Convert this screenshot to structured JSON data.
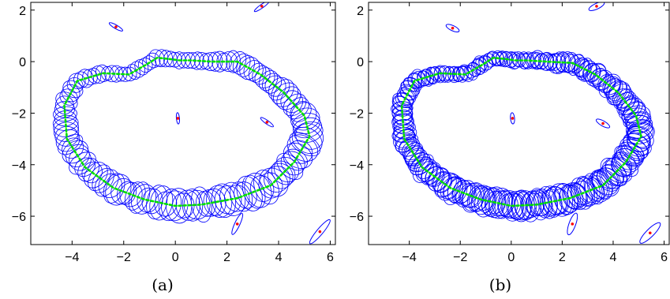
{
  "chart_data": [
    {
      "type": "scatter",
      "caption": "(a)",
      "title": "",
      "xlabel": "",
      "ylabel": "",
      "xlim": [
        -5.6,
        6.2
      ],
      "ylim": [
        -7.1,
        2.3
      ],
      "xticks": [
        -4,
        -2,
        0,
        2,
        4,
        6
      ],
      "yticks": [
        2,
        0,
        -2,
        -4,
        -6
      ],
      "grid": false,
      "colors": {
        "ellipse": "#0000ff",
        "trajectory": "#00dd00",
        "landmark": "#ff0000"
      },
      "landmarks": [
        {
          "x": 3.35,
          "y": 2.15,
          "rx": 0.35,
          "ry": 0.07,
          "angle": 35
        },
        {
          "x": -2.3,
          "y": 1.35,
          "rx": 0.3,
          "ry": 0.07,
          "angle": -30
        },
        {
          "x": 0.1,
          "y": -2.2,
          "rx": 0.22,
          "ry": 0.06,
          "angle": -85
        },
        {
          "x": 3.55,
          "y": -2.35,
          "rx": 0.3,
          "ry": 0.07,
          "angle": -35
        },
        {
          "x": 2.4,
          "y": -6.3,
          "rx": 0.45,
          "ry": 0.1,
          "angle": 65
        },
        {
          "x": 5.6,
          "y": -6.6,
          "rx": 0.6,
          "ry": 0.12,
          "angle": 50
        }
      ],
      "trajectory": [
        [
          0.15,
          0.05
        ],
        [
          0.6,
          0.05
        ],
        [
          1.4,
          0.0
        ],
        [
          2.4,
          0.0
        ],
        [
          3.3,
          -0.5
        ],
        [
          4.2,
          -1.2
        ],
        [
          5.0,
          -2.1
        ],
        [
          5.2,
          -2.9
        ],
        [
          4.6,
          -3.9
        ],
        [
          3.7,
          -4.8
        ],
        [
          2.4,
          -5.3
        ],
        [
          1.0,
          -5.55
        ],
        [
          0.0,
          -5.6
        ],
        [
          -1.2,
          -5.35
        ],
        [
          -2.4,
          -4.9
        ],
        [
          -3.5,
          -4.1
        ],
        [
          -4.2,
          -3.0
        ],
        [
          -4.3,
          -1.7
        ],
        [
          -3.8,
          -0.75
        ],
        [
          -2.8,
          -0.45
        ],
        [
          -1.8,
          -0.5
        ],
        [
          -1.1,
          -0.1
        ],
        [
          -0.7,
          0.15
        ],
        [
          -0.2,
          0.1
        ],
        [
          0.15,
          0.05
        ]
      ],
      "uncertainty": {
        "ellipses": 140,
        "rx_range": [
          0.15,
          0.45
        ],
        "ry_range": [
          0.15,
          0.6
        ],
        "layers": 1
      }
    },
    {
      "type": "scatter",
      "caption": "(b)",
      "title": "",
      "xlabel": "",
      "ylabel": "",
      "xlim": [
        -5.6,
        6.2
      ],
      "ylim": [
        -7.1,
        2.3
      ],
      "xticks": [
        -4,
        -2,
        0,
        2,
        4,
        6
      ],
      "yticks": [
        2,
        0,
        -2,
        -4,
        -6
      ],
      "grid": false,
      "colors": {
        "ellipse": "#0000ff",
        "trajectory": "#00dd00",
        "landmark": "#ff0000"
      },
      "landmarks": [
        {
          "x": 3.35,
          "y": 2.15,
          "rx": 0.33,
          "ry": 0.11,
          "angle": 25
        },
        {
          "x": -2.3,
          "y": 1.3,
          "rx": 0.28,
          "ry": 0.1,
          "angle": -25
        },
        {
          "x": 0.05,
          "y": -2.2,
          "rx": 0.22,
          "ry": 0.08,
          "angle": -85
        },
        {
          "x": 3.6,
          "y": -2.4,
          "rx": 0.3,
          "ry": 0.1,
          "angle": -30
        },
        {
          "x": 2.4,
          "y": -6.3,
          "rx": 0.45,
          "ry": 0.13,
          "angle": 70
        },
        {
          "x": 5.45,
          "y": -6.65,
          "rx": 0.55,
          "ry": 0.15,
          "angle": 45
        }
      ],
      "trajectory": [
        [
          0.15,
          0.05
        ],
        [
          0.6,
          0.05
        ],
        [
          1.4,
          0.0
        ],
        [
          2.4,
          -0.05
        ],
        [
          3.3,
          -0.5
        ],
        [
          4.2,
          -1.2
        ],
        [
          4.9,
          -2.1
        ],
        [
          5.1,
          -2.9
        ],
        [
          4.5,
          -3.9
        ],
        [
          3.6,
          -4.8
        ],
        [
          2.3,
          -5.3
        ],
        [
          1.0,
          -5.55
        ],
        [
          0.0,
          -5.6
        ],
        [
          -1.2,
          -5.35
        ],
        [
          -2.4,
          -4.9
        ],
        [
          -3.5,
          -4.1
        ],
        [
          -4.2,
          -3.0
        ],
        [
          -4.3,
          -1.7
        ],
        [
          -3.8,
          -0.75
        ],
        [
          -2.8,
          -0.45
        ],
        [
          -1.8,
          -0.5
        ],
        [
          -1.1,
          -0.1
        ],
        [
          -0.7,
          0.15
        ],
        [
          -0.2,
          0.1
        ],
        [
          0.15,
          0.05
        ]
      ],
      "uncertainty": {
        "ellipses": 140,
        "rx_range": [
          0.15,
          0.4
        ],
        "ry_range": [
          0.15,
          0.55
        ],
        "layers": 2
      }
    }
  ]
}
